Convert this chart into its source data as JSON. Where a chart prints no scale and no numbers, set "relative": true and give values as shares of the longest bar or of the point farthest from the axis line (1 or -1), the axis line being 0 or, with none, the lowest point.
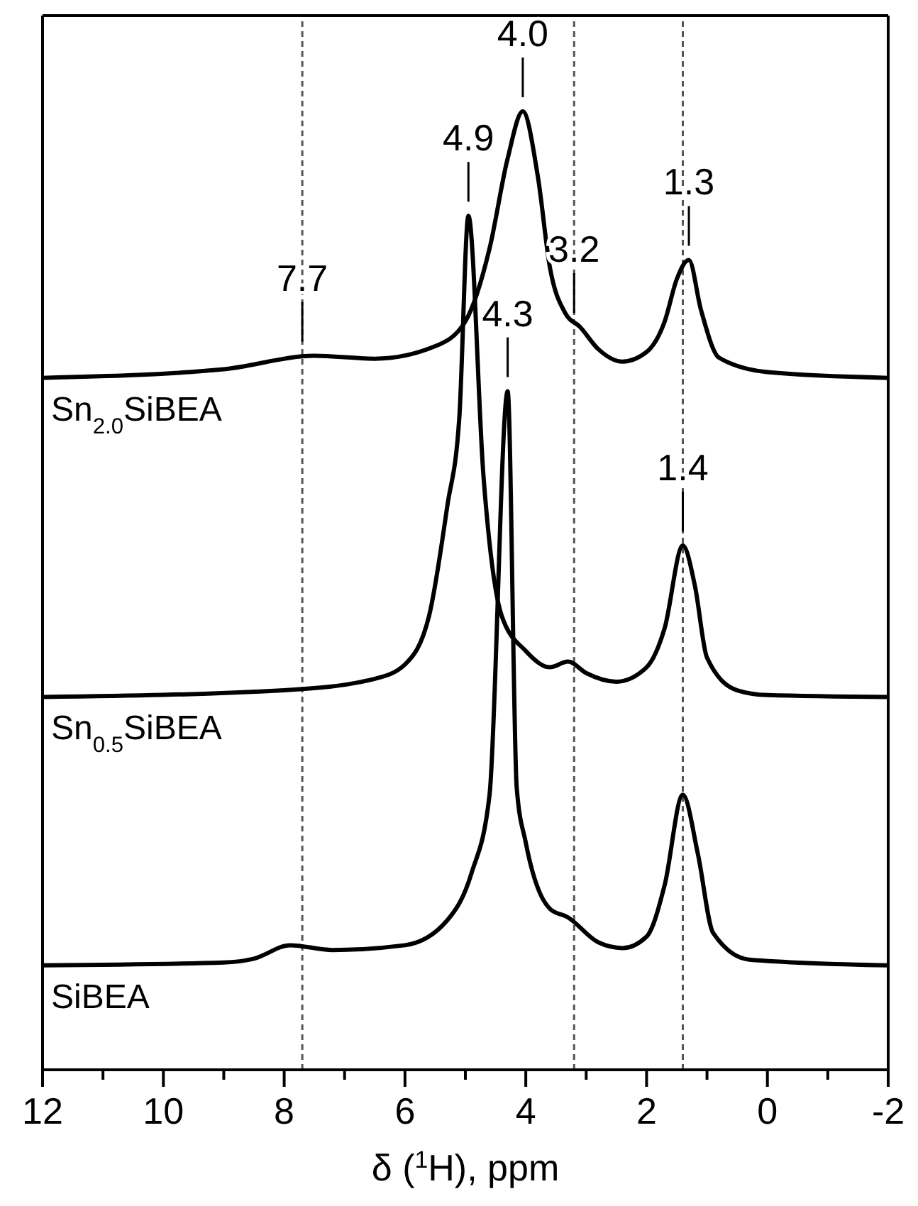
{
  "chart_data": {
    "type": "line",
    "relative": true,
    "xlabel": "δ ($^{1}$H), ppm",
    "xlim": [
      12,
      -2
    ],
    "xticks": [
      12,
      {
        "value": 11,
        "label": null
      },
      10,
      {
        "value": 9,
        "label": null
      },
      8,
      {
        "value": 7,
        "label": null
      },
      6,
      {
        "value": 5,
        "label": null
      },
      4,
      {
        "value": 3,
        "label": null
      },
      2,
      {
        "value": 1,
        "label": null
      },
      0,
      {
        "value": -1,
        "label": null
      },
      -2
    ],
    "series": [
      {
        "name": "Sn$_{2.0}$SiBEA",
        "color": "#000000",
        "x": [
          12,
          9,
          7.5,
          6.5,
          5.5,
          5.0,
          4.6,
          4.3,
          4.05,
          3.8,
          3.6,
          3.35,
          3.1,
          2.8,
          2.4,
          2.0,
          1.7,
          1.5,
          1.3,
          1.1,
          0.8,
          0,
          -2
        ],
        "values": [
          0.722,
          0.731,
          0.745,
          0.742,
          0.755,
          0.781,
          0.857,
          0.951,
          1,
          0.932,
          0.837,
          0.79,
          0.775,
          0.752,
          0.739,
          0.749,
          0.781,
          0.825,
          0.845,
          0.793,
          0.743,
          0.728,
          0.722
        ]
      },
      {
        "name": "Sn$_{0.5}$SiBEA",
        "color": "#000000",
        "x": [
          12,
          8,
          6.5,
          6.0,
          5.6,
          5.3,
          5.1,
          4.95,
          4.7,
          4.4,
          4.0,
          3.6,
          3.3,
          3.0,
          2.5,
          2.0,
          1.7,
          1.4,
          1.2,
          1.0,
          0.5,
          0,
          -2
        ],
        "values": [
          0.389,
          0.396,
          0.408,
          0.423,
          0.474,
          0.588,
          0.681,
          0.891,
          0.619,
          0.474,
          0.437,
          0.42,
          0.426,
          0.414,
          0.405,
          0.42,
          0.461,
          0.547,
          0.505,
          0.43,
          0.396,
          0.391,
          0.389
        ]
      },
      {
        "name": "SiBEA",
        "color": "#000000",
        "x": [
          12,
          9,
          8.5,
          7.9,
          7.2,
          6.0,
          5.3,
          4.9,
          4.6,
          4.3,
          4.15,
          4.0,
          3.6,
          3.3,
          2.8,
          2.4,
          2.0,
          1.7,
          1.4,
          1.15,
          0.9,
          0.3,
          -2
        ],
        "values": [
          0.109,
          0.112,
          0.116,
          0.13,
          0.125,
          0.13,
          0.156,
          0.205,
          0.287,
          0.708,
          0.294,
          0.237,
          0.168,
          0.159,
          0.133,
          0.127,
          0.139,
          0.193,
          0.287,
          0.225,
          0.143,
          0.115,
          0.109
        ]
      }
    ],
    "ref_lines": [
      {
        "axis": "x",
        "value": 7.7,
        "color": "#555555",
        "line_style": "dashed"
      },
      {
        "axis": "x",
        "value": 3.2,
        "color": "#555555",
        "line_style": "dashed"
      },
      {
        "axis": "x",
        "value": 1.4,
        "color": "#555555",
        "line_style": "dashed"
      }
    ],
    "annotations": [
      {
        "text": "4.0",
        "x": 4.05,
        "y": 1
      },
      {
        "text": "1.3",
        "x": 1.3,
        "y": 0.845
      },
      {
        "text": "7.7",
        "x": 7.7,
        "y": 0.745
      },
      {
        "text": "3.2",
        "x": 3.2,
        "y": 0.775
      },
      {
        "text": "4.9",
        "x": 4.95,
        "y": 0.891
      },
      {
        "text": "1.4",
        "x": 1.4,
        "y": 0.547
      },
      {
        "text": "4.3",
        "x": 4.3,
        "y": 0.708
      }
    ],
    "legend": false,
    "grid": false,
    "marker": "none",
    "line_style": "solid"
  }
}
